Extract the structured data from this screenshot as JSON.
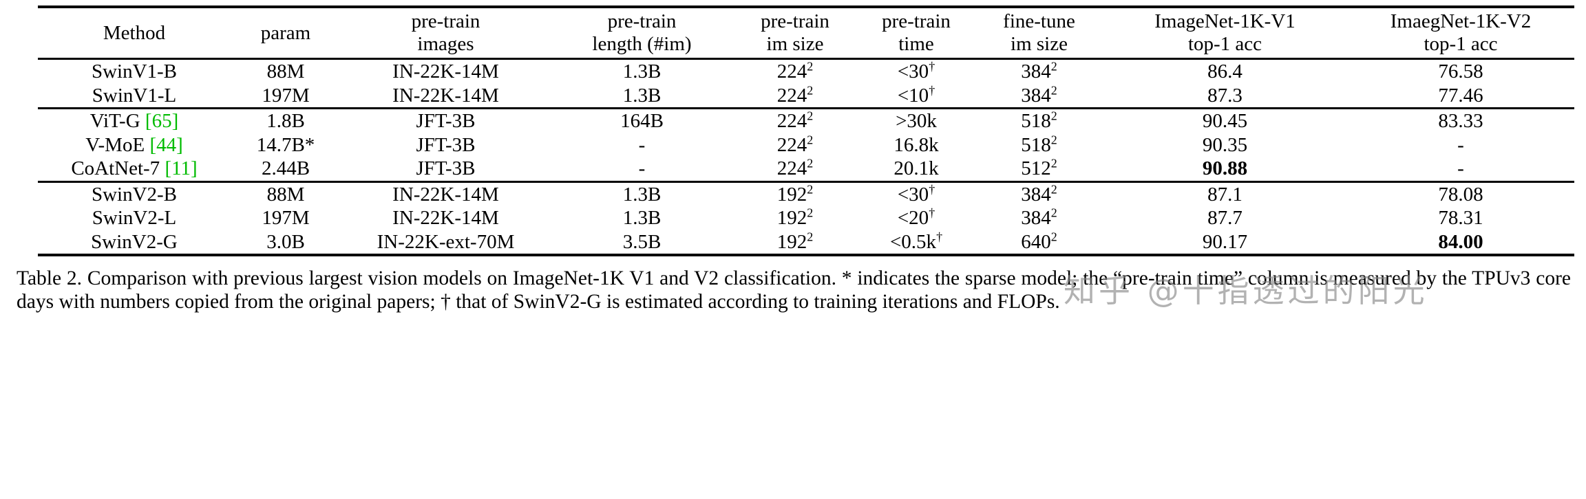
{
  "table": {
    "headers": [
      {
        "line1": "Method",
        "line2": ""
      },
      {
        "line1": "param",
        "line2": ""
      },
      {
        "line1": "pre-train",
        "line2": "images"
      },
      {
        "line1": "pre-train",
        "line2": "length (#im)"
      },
      {
        "line1": "pre-train",
        "line2": "im size"
      },
      {
        "line1": "pre-train",
        "line2": "time"
      },
      {
        "line1": "fine-tune",
        "line2": "im size"
      },
      {
        "line1": "ImageNet-1K-V1",
        "line2": "top-1 acc"
      },
      {
        "line1": "ImaegNet-1K-V2",
        "line2": "top-1 acc"
      }
    ],
    "rows": [
      {
        "group_end": false,
        "cells": [
          {
            "t": "SwinV1-B"
          },
          {
            "t": "88M"
          },
          {
            "t": "IN-22K-14M"
          },
          {
            "t": "1.3B"
          },
          {
            "t": "224",
            "sup": "2"
          },
          {
            "t": "<30",
            "sup": "†"
          },
          {
            "t": "384",
            "sup": "2"
          },
          {
            "t": "86.4"
          },
          {
            "t": "76.58"
          }
        ]
      },
      {
        "group_end": true,
        "cells": [
          {
            "t": "SwinV1-L"
          },
          {
            "t": "197M"
          },
          {
            "t": "IN-22K-14M"
          },
          {
            "t": "1.3B"
          },
          {
            "t": "224",
            "sup": "2"
          },
          {
            "t": "<10",
            "sup": "†"
          },
          {
            "t": "384",
            "sup": "2"
          },
          {
            "t": "87.3"
          },
          {
            "t": "77.46"
          }
        ]
      },
      {
        "group_end": false,
        "cells": [
          {
            "t": "ViT-G ",
            "cite": "[65]"
          },
          {
            "t": "1.8B"
          },
          {
            "t": "JFT-3B"
          },
          {
            "t": "164B"
          },
          {
            "t": "224",
            "sup": "2"
          },
          {
            "t": ">30k"
          },
          {
            "t": "518",
            "sup": "2"
          },
          {
            "t": "90.45"
          },
          {
            "t": "83.33"
          }
        ]
      },
      {
        "group_end": false,
        "cells": [
          {
            "t": "V-MoE ",
            "cite": "[44]"
          },
          {
            "t": "14.7B*"
          },
          {
            "t": "JFT-3B"
          },
          {
            "t": "-"
          },
          {
            "t": "224",
            "sup": "2"
          },
          {
            "t": "16.8k"
          },
          {
            "t": "518",
            "sup": "2"
          },
          {
            "t": "90.35"
          },
          {
            "t": "-"
          }
        ]
      },
      {
        "group_end": true,
        "cells": [
          {
            "t": "CoAtNet-7 ",
            "cite": "[11]"
          },
          {
            "t": "2.44B"
          },
          {
            "t": "JFT-3B"
          },
          {
            "t": "-"
          },
          {
            "t": "224",
            "sup": "2"
          },
          {
            "t": "20.1k"
          },
          {
            "t": "512",
            "sup": "2"
          },
          {
            "t": "90.88",
            "bold": true
          },
          {
            "t": "-"
          }
        ]
      },
      {
        "group_end": false,
        "cells": [
          {
            "t": "SwinV2-B"
          },
          {
            "t": "88M"
          },
          {
            "t": "IN-22K-14M"
          },
          {
            "t": "1.3B"
          },
          {
            "t": "192",
            "sup": "2"
          },
          {
            "t": "<30",
            "sup": "†"
          },
          {
            "t": "384",
            "sup": "2"
          },
          {
            "t": "87.1"
          },
          {
            "t": "78.08"
          }
        ]
      },
      {
        "group_end": false,
        "cells": [
          {
            "t": "SwinV2-L"
          },
          {
            "t": "197M"
          },
          {
            "t": "IN-22K-14M"
          },
          {
            "t": "1.3B"
          },
          {
            "t": "192",
            "sup": "2"
          },
          {
            "t": "<20",
            "sup": "†"
          },
          {
            "t": "384",
            "sup": "2"
          },
          {
            "t": "87.7"
          },
          {
            "t": "78.31"
          }
        ]
      },
      {
        "group_end": false,
        "cells": [
          {
            "t": "SwinV2-G"
          },
          {
            "t": "3.0B"
          },
          {
            "t": "IN-22K-ext-70M"
          },
          {
            "t": "3.5B"
          },
          {
            "t": "192",
            "sup": "2"
          },
          {
            "t": "<0.5k",
            "sup": "†"
          },
          {
            "t": "640",
            "sup": "2"
          },
          {
            "t": "90.17"
          },
          {
            "t": "84.00",
            "bold": true
          }
        ]
      }
    ]
  },
  "caption": {
    "label": "Table 2.",
    "text": "Comparison with previous largest vision models on ImageNet-1K V1 and V2 classification.  * indicates the sparse model; the “pre-train time” column is measured by the TPUv3 core days with numbers copied from the original papers; † that of SwinV2-G is estimated according to training iterations and FLOPs."
  },
  "watermark": "知乎 @十指透过的阳光",
  "colors": {
    "citation_green": "#00bb00"
  }
}
